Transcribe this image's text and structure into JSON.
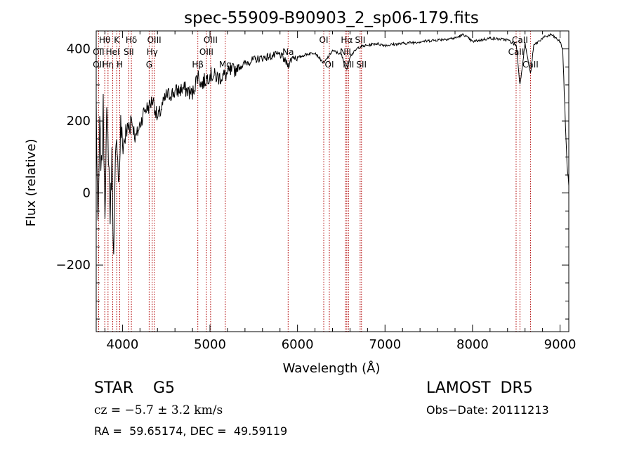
{
  "chart_data": {
    "type": "line",
    "title": "spec-55909-B90903_2_sp06-179.fits",
    "xlabel": "Wavelength (Å)",
    "ylabel": "Flux (relative)",
    "xlim": [
      3700,
      9100
    ],
    "ylim": [
      -385,
      450
    ],
    "x_ticks": [
      4000,
      5000,
      6000,
      7000,
      8000,
      9000
    ],
    "y_ticks": [
      -200,
      0,
      200,
      400
    ],
    "grid": false,
    "series": [
      {
        "x": [
          3700,
          3720,
          3740,
          3760,
          3780,
          3800,
          3820,
          3840,
          3860,
          3880,
          3900,
          3920,
          3940,
          3960,
          3980,
          4000,
          4050,
          4100,
          4150,
          4200,
          4250,
          4300,
          4350,
          4400,
          4500,
          4600,
          4700,
          4800,
          4861,
          4900,
          5000,
          5100,
          5200,
          5300,
          5400,
          5500,
          5600,
          5700,
          5800,
          5893,
          5950,
          6000,
          6100,
          6200,
          6300,
          6400,
          6500,
          6563,
          6600,
          6700,
          6800,
          6900,
          7000,
          7200,
          7400,
          7600,
          7800,
          7900,
          8000,
          8200,
          8400,
          8500,
          8542,
          8600,
          8662,
          8700,
          8800,
          8900,
          9000,
          9030,
          9060,
          9080,
          9100
        ],
        "y": [
          250,
          -120,
          180,
          60,
          230,
          -30,
          200,
          120,
          -60,
          100,
          -190,
          80,
          150,
          20,
          190,
          130,
          170,
          210,
          150,
          190,
          230,
          240,
          260,
          205,
          270,
          280,
          290,
          275,
          330,
          300,
          330,
          320,
          330,
          345,
          360,
          370,
          375,
          380,
          385,
          355,
          380,
          375,
          385,
          390,
          360,
          395,
          385,
          340,
          380,
          405,
          410,
          415,
          410,
          415,
          420,
          425,
          430,
          440,
          420,
          430,
          425,
          410,
          300,
          415,
          330,
          410,
          430,
          440,
          420,
          400,
          200,
          80,
          20
        ]
      }
    ],
    "lines": [
      {
        "label": "Hθ",
        "x": 3798,
        "row": 0
      },
      {
        "label": "OII",
        "x": 3727,
        "row": 1
      },
      {
        "label": "OII",
        "x": 3727,
        "row": 2
      },
      {
        "label": "Hη",
        "x": 3835,
        "row": 2
      },
      {
        "label": "HeI",
        "x": 3889,
        "row": 1
      },
      {
        "label": "K",
        "x": 3934,
        "row": 0
      },
      {
        "label": "H",
        "x": 3969,
        "row": 2
      },
      {
        "label": "Hδ",
        "x": 4102,
        "row": 0
      },
      {
        "label": "SII",
        "x": 4072,
        "row": 1
      },
      {
        "label": "OIII",
        "x": 4363,
        "row": 0
      },
      {
        "label": "Hγ",
        "x": 4340,
        "row": 1
      },
      {
        "label": "G",
        "x": 4305,
        "row": 2
      },
      {
        "label": "Hβ",
        "x": 4861,
        "row": 2
      },
      {
        "label": "OIII",
        "x": 5007,
        "row": 0
      },
      {
        "label": "OIII",
        "x": 4959,
        "row": 1
      },
      {
        "label": "Mg",
        "x": 5175,
        "row": 2
      },
      {
        "label": "Na",
        "x": 5893,
        "row": 1
      },
      {
        "label": "OI",
        "x": 6300,
        "row": 0
      },
      {
        "label": "OI",
        "x": 6364,
        "row": 2
      },
      {
        "label": "Hα",
        "x": 6563,
        "row": 0
      },
      {
        "label": "NII",
        "x": 6548,
        "row": 1
      },
      {
        "label": "NII",
        "x": 6583,
        "row": 2
      },
      {
        "label": "SII",
        "x": 6716,
        "row": 0
      },
      {
        "label": "SII",
        "x": 6731,
        "row": 2
      },
      {
        "label": "CaII",
        "x": 8542,
        "row": 0
      },
      {
        "label": "CaII",
        "x": 8498,
        "row": 1
      },
      {
        "label": "CaII",
        "x": 8662,
        "row": 2
      }
    ]
  },
  "info": {
    "class_label": "STAR    G5",
    "survey": "LAMOST  DR5",
    "cz": "cz = −5.7 ± 3.2 km/s",
    "obs_date": "Obs−Date: 20111213",
    "coords": "RA =  59.65174, DEC =  49.59119"
  }
}
